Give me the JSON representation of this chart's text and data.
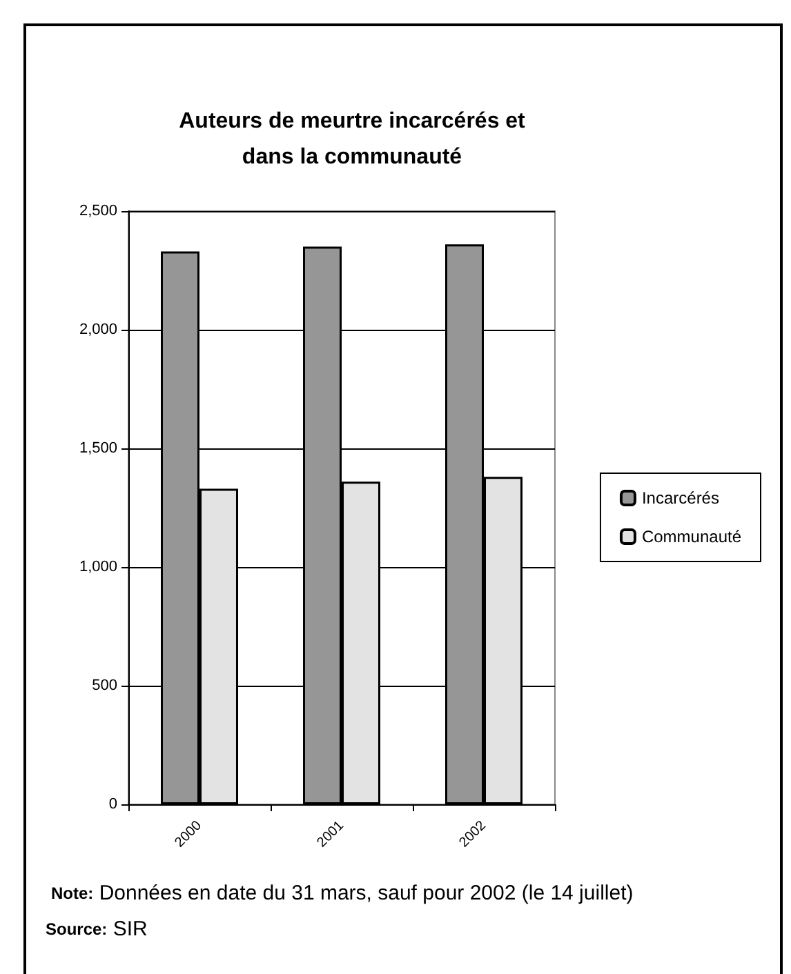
{
  "chart_data": {
    "type": "bar",
    "title": "Auteurs de meurtre incarcérés et\ndans la communauté",
    "categories": [
      "2000",
      "2001",
      "2002"
    ],
    "series": [
      {
        "name": "Incarcérés",
        "color": "#969696",
        "values": [
          2330,
          2350,
          2360
        ]
      },
      {
        "name": "Communauté",
        "color": "#e3e3e3",
        "values": [
          1330,
          1360,
          1380
        ]
      }
    ],
    "ylim": [
      0,
      2500
    ],
    "yticks": [
      0,
      {
        "value": 500,
        "label": "500"
      },
      {
        "value": 1000,
        "label": "1,000"
      },
      {
        "value": 1500,
        "label": "1,500"
      },
      {
        "value": 2000,
        "label": "2,000"
      },
      {
        "value": 2500,
        "label": "2,500"
      }
    ],
    "grid": "y",
    "legend": "right",
    "annotations": [
      "Note: Données en date du 31 mars, sauf pour 2002 (le 14 juillet)",
      "Source: SIR"
    ]
  }
}
